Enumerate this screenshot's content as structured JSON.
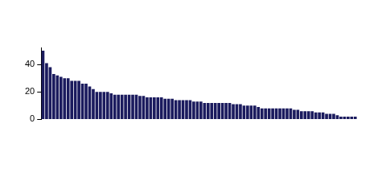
{
  "chart_data": {
    "type": "bar",
    "categories": [
      null,
      null,
      null,
      null,
      null,
      null,
      null,
      null,
      null,
      null,
      null,
      null,
      null,
      null,
      null,
      null,
      null,
      null,
      null,
      null,
      null,
      null,
      null,
      null,
      null,
      null,
      null,
      null,
      null,
      null,
      null,
      null,
      null,
      null,
      null,
      null,
      null,
      null,
      null,
      null,
      null,
      null,
      null,
      null,
      null,
      null,
      null,
      null,
      null,
      null,
      null,
      null,
      null,
      null,
      null,
      null,
      null,
      null,
      null,
      null,
      null,
      null,
      null,
      null,
      null,
      null,
      null,
      null,
      null,
      null,
      null,
      null,
      null,
      null,
      null,
      null,
      null,
      null,
      null,
      null,
      null,
      null,
      null,
      null,
      null,
      null,
      null,
      null
    ],
    "values": [
      50,
      41,
      38,
      33,
      32,
      31,
      30,
      30,
      28,
      28,
      28,
      26,
      26,
      24,
      22,
      20,
      20,
      20,
      20,
      19,
      18,
      18,
      18,
      18,
      18,
      18,
      18,
      17,
      17,
      16,
      16,
      16,
      16,
      16,
      15,
      15,
      15,
      14,
      14,
      14,
      14,
      14,
      13,
      13,
      13,
      12,
      12,
      12,
      12,
      12,
      12,
      12,
      12,
      11,
      11,
      11,
      10,
      10,
      10,
      10,
      9,
      8,
      8,
      8,
      8,
      8,
      8,
      8,
      8,
      8,
      7,
      7,
      6,
      6,
      6,
      6,
      5,
      5,
      5,
      4,
      4,
      4,
      3,
      2,
      2,
      2,
      2,
      2
    ],
    "color": "#1b1b5e",
    "ylim": [
      0,
      52
    ],
    "yticks": [
      0,
      20,
      40
    ],
    "grid": false,
    "tick_labels": "y"
  }
}
